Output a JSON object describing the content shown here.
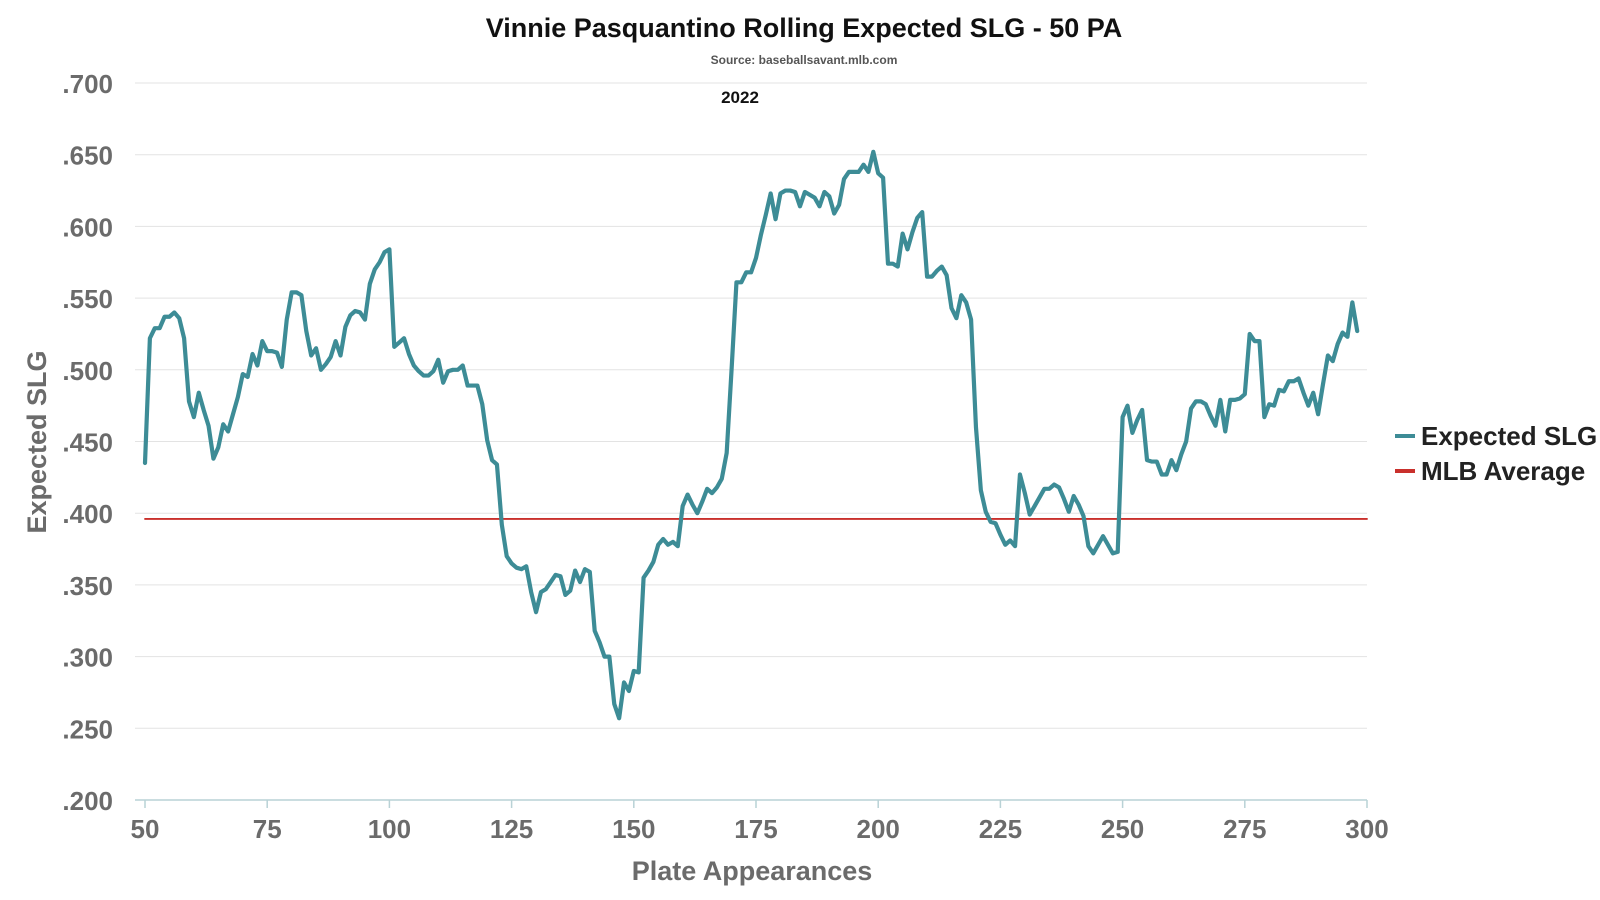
{
  "chart_data": {
    "type": "line",
    "title": "Vinnie Pasquantino Rolling Expected SLG - 50 PA",
    "subtitle": "Source: baseballsavant.mlb.com",
    "season_label": "2022",
    "xlabel": "Plate Appearances",
    "ylabel": "Expected SLG",
    "xlim": [
      50,
      300
    ],
    "ylim": [
      0.2,
      0.7
    ],
    "x_ticks": [
      50,
      75,
      100,
      125,
      150,
      175,
      200,
      225,
      250,
      275,
      300
    ],
    "x_tick_labels": [
      "50",
      "75",
      "100",
      "125",
      "150",
      "175",
      "200",
      "225",
      "250",
      "275",
      "300"
    ],
    "y_ticks": [
      0.2,
      0.25,
      0.3,
      0.35,
      0.4,
      0.45,
      0.5,
      0.55,
      0.6,
      0.65,
      0.7
    ],
    "y_tick_labels": [
      ".200",
      ".250",
      ".300",
      ".350",
      ".400",
      ".450",
      ".500",
      ".550",
      ".600",
      ".650",
      ".700"
    ],
    "grid": true,
    "legend_position": "right",
    "series": [
      {
        "name": "Expected SLG",
        "color": "#3d8c96",
        "points": [
          [
            50,
            0.435
          ],
          [
            51,
            0.522
          ],
          [
            52,
            0.529
          ],
          [
            53,
            0.529
          ],
          [
            54,
            0.537
          ],
          [
            55,
            0.537
          ],
          [
            56,
            0.54
          ],
          [
            57,
            0.536
          ],
          [
            58,
            0.522
          ],
          [
            59,
            0.478
          ],
          [
            60,
            0.467
          ],
          [
            61,
            0.484
          ],
          [
            62,
            0.472
          ],
          [
            63,
            0.461
          ],
          [
            64,
            0.438
          ],
          [
            65,
            0.446
          ],
          [
            66,
            0.462
          ],
          [
            67,
            0.457
          ],
          [
            68,
            0.469
          ],
          [
            69,
            0.481
          ],
          [
            70,
            0.497
          ],
          [
            71,
            0.495
          ],
          [
            72,
            0.511
          ],
          [
            73,
            0.503
          ],
          [
            74,
            0.52
          ],
          [
            75,
            0.513
          ],
          [
            76,
            0.513
          ],
          [
            77,
            0.512
          ],
          [
            78,
            0.502
          ],
          [
            79,
            0.535
          ],
          [
            80,
            0.554
          ],
          [
            81,
            0.554
          ],
          [
            82,
            0.552
          ],
          [
            83,
            0.527
          ],
          [
            84,
            0.51
          ],
          [
            85,
            0.515
          ],
          [
            86,
            0.5
          ],
          [
            87,
            0.504
          ],
          [
            88,
            0.509
          ],
          [
            89,
            0.52
          ],
          [
            90,
            0.51
          ],
          [
            91,
            0.53
          ],
          [
            92,
            0.538
          ],
          [
            93,
            0.541
          ],
          [
            94,
            0.54
          ],
          [
            95,
            0.535
          ],
          [
            96,
            0.56
          ],
          [
            97,
            0.57
          ],
          [
            98,
            0.575
          ],
          [
            99,
            0.582
          ],
          [
            100,
            0.584
          ],
          [
            101,
            0.516
          ],
          [
            102,
            0.519
          ],
          [
            103,
            0.522
          ],
          [
            104,
            0.511
          ],
          [
            105,
            0.503
          ],
          [
            106,
            0.499
          ],
          [
            107,
            0.496
          ],
          [
            108,
            0.496
          ],
          [
            109,
            0.499
          ],
          [
            110,
            0.507
          ],
          [
            111,
            0.491
          ],
          [
            112,
            0.499
          ],
          [
            113,
            0.5
          ],
          [
            114,
            0.5
          ],
          [
            115,
            0.503
          ],
          [
            116,
            0.489
          ],
          [
            117,
            0.489
          ],
          [
            118,
            0.489
          ],
          [
            119,
            0.476
          ],
          [
            120,
            0.451
          ],
          [
            121,
            0.437
          ],
          [
            122,
            0.434
          ],
          [
            123,
            0.392
          ],
          [
            124,
            0.37
          ],
          [
            125,
            0.365
          ],
          [
            126,
            0.362
          ],
          [
            127,
            0.361
          ],
          [
            128,
            0.363
          ],
          [
            129,
            0.345
          ],
          [
            130,
            0.331
          ],
          [
            131,
            0.345
          ],
          [
            132,
            0.347
          ],
          [
            133,
            0.352
          ],
          [
            134,
            0.357
          ],
          [
            135,
            0.356
          ],
          [
            136,
            0.343
          ],
          [
            137,
            0.346
          ],
          [
            138,
            0.36
          ],
          [
            139,
            0.352
          ],
          [
            140,
            0.361
          ],
          [
            141,
            0.359
          ],
          [
            142,
            0.318
          ],
          [
            143,
            0.31
          ],
          [
            144,
            0.3
          ],
          [
            145,
            0.3
          ],
          [
            146,
            0.267
          ],
          [
            147,
            0.257
          ],
          [
            148,
            0.282
          ],
          [
            149,
            0.276
          ],
          [
            150,
            0.29
          ],
          [
            151,
            0.289
          ],
          [
            152,
            0.355
          ],
          [
            153,
            0.36
          ],
          [
            154,
            0.366
          ],
          [
            155,
            0.378
          ],
          [
            156,
            0.382
          ],
          [
            157,
            0.378
          ],
          [
            158,
            0.38
          ],
          [
            159,
            0.377
          ],
          [
            160,
            0.405
          ],
          [
            161,
            0.413
          ],
          [
            162,
            0.406
          ],
          [
            163,
            0.4
          ],
          [
            164,
            0.408
          ],
          [
            165,
            0.417
          ],
          [
            166,
            0.414
          ],
          [
            167,
            0.418
          ],
          [
            168,
            0.424
          ],
          [
            169,
            0.442
          ],
          [
            170,
            0.5
          ],
          [
            171,
            0.561
          ],
          [
            172,
            0.561
          ],
          [
            173,
            0.568
          ],
          [
            174,
            0.568
          ],
          [
            175,
            0.578
          ],
          [
            176,
            0.594
          ],
          [
            177,
            0.608
          ],
          [
            178,
            0.623
          ],
          [
            179,
            0.605
          ],
          [
            180,
            0.623
          ],
          [
            181,
            0.625
          ],
          [
            182,
            0.625
          ],
          [
            183,
            0.624
          ],
          [
            184,
            0.614
          ],
          [
            185,
            0.624
          ],
          [
            186,
            0.622
          ],
          [
            187,
            0.62
          ],
          [
            188,
            0.614
          ],
          [
            189,
            0.624
          ],
          [
            190,
            0.621
          ],
          [
            191,
            0.609
          ],
          [
            192,
            0.615
          ],
          [
            193,
            0.633
          ],
          [
            194,
            0.638
          ],
          [
            195,
            0.638
          ],
          [
            196,
            0.638
          ],
          [
            197,
            0.643
          ],
          [
            198,
            0.638
          ],
          [
            199,
            0.652
          ],
          [
            200,
            0.637
          ],
          [
            201,
            0.634
          ],
          [
            202,
            0.574
          ],
          [
            203,
            0.574
          ],
          [
            204,
            0.572
          ],
          [
            205,
            0.595
          ],
          [
            206,
            0.584
          ],
          [
            207,
            0.596
          ],
          [
            208,
            0.606
          ],
          [
            209,
            0.61
          ],
          [
            210,
            0.565
          ],
          [
            211,
            0.565
          ],
          [
            212,
            0.569
          ],
          [
            213,
            0.572
          ],
          [
            214,
            0.566
          ],
          [
            215,
            0.543
          ],
          [
            216,
            0.536
          ],
          [
            217,
            0.552
          ],
          [
            218,
            0.547
          ],
          [
            219,
            0.535
          ],
          [
            220,
            0.46
          ],
          [
            221,
            0.416
          ],
          [
            222,
            0.401
          ],
          [
            223,
            0.394
          ],
          [
            224,
            0.393
          ],
          [
            225,
            0.385
          ],
          [
            226,
            0.378
          ],
          [
            227,
            0.381
          ],
          [
            228,
            0.377
          ],
          [
            229,
            0.427
          ],
          [
            230,
            0.414
          ],
          [
            231,
            0.399
          ],
          [
            232,
            0.405
          ],
          [
            233,
            0.411
          ],
          [
            234,
            0.417
          ],
          [
            235,
            0.417
          ],
          [
            236,
            0.42
          ],
          [
            237,
            0.418
          ],
          [
            238,
            0.41
          ],
          [
            239,
            0.401
          ],
          [
            240,
            0.412
          ],
          [
            241,
            0.406
          ],
          [
            242,
            0.398
          ],
          [
            243,
            0.377
          ],
          [
            244,
            0.372
          ],
          [
            245,
            0.378
          ],
          [
            246,
            0.384
          ],
          [
            247,
            0.378
          ],
          [
            248,
            0.372
          ],
          [
            249,
            0.373
          ],
          [
            250,
            0.467
          ],
          [
            251,
            0.475
          ],
          [
            252,
            0.456
          ],
          [
            253,
            0.465
          ],
          [
            254,
            0.472
          ],
          [
            255,
            0.437
          ],
          [
            256,
            0.436
          ],
          [
            257,
            0.436
          ],
          [
            258,
            0.427
          ],
          [
            259,
            0.427
          ],
          [
            260,
            0.437
          ],
          [
            261,
            0.43
          ],
          [
            262,
            0.441
          ],
          [
            263,
            0.45
          ],
          [
            264,
            0.473
          ],
          [
            265,
            0.478
          ],
          [
            266,
            0.478
          ],
          [
            267,
            0.476
          ],
          [
            268,
            0.468
          ],
          [
            269,
            0.461
          ],
          [
            270,
            0.479
          ],
          [
            271,
            0.457
          ],
          [
            272,
            0.479
          ],
          [
            273,
            0.479
          ],
          [
            274,
            0.48
          ],
          [
            275,
            0.483
          ],
          [
            276,
            0.525
          ],
          [
            277,
            0.52
          ],
          [
            278,
            0.52
          ],
          [
            279,
            0.467
          ],
          [
            280,
            0.476
          ],
          [
            281,
            0.475
          ],
          [
            282,
            0.486
          ],
          [
            283,
            0.485
          ],
          [
            284,
            0.492
          ],
          [
            285,
            0.492
          ],
          [
            286,
            0.494
          ],
          [
            287,
            0.484
          ],
          [
            288,
            0.475
          ],
          [
            289,
            0.484
          ],
          [
            290,
            0.469
          ],
          [
            291,
            0.49
          ],
          [
            292,
            0.51
          ],
          [
            293,
            0.506
          ],
          [
            294,
            0.518
          ],
          [
            295,
            0.526
          ],
          [
            296,
            0.523
          ],
          [
            297,
            0.547
          ],
          [
            298,
            0.527
          ]
        ]
      },
      {
        "name": "MLB Average",
        "color": "#c9302c",
        "points": [
          [
            50,
            0.396
          ],
          [
            300,
            0.396
          ]
        ]
      }
    ]
  }
}
